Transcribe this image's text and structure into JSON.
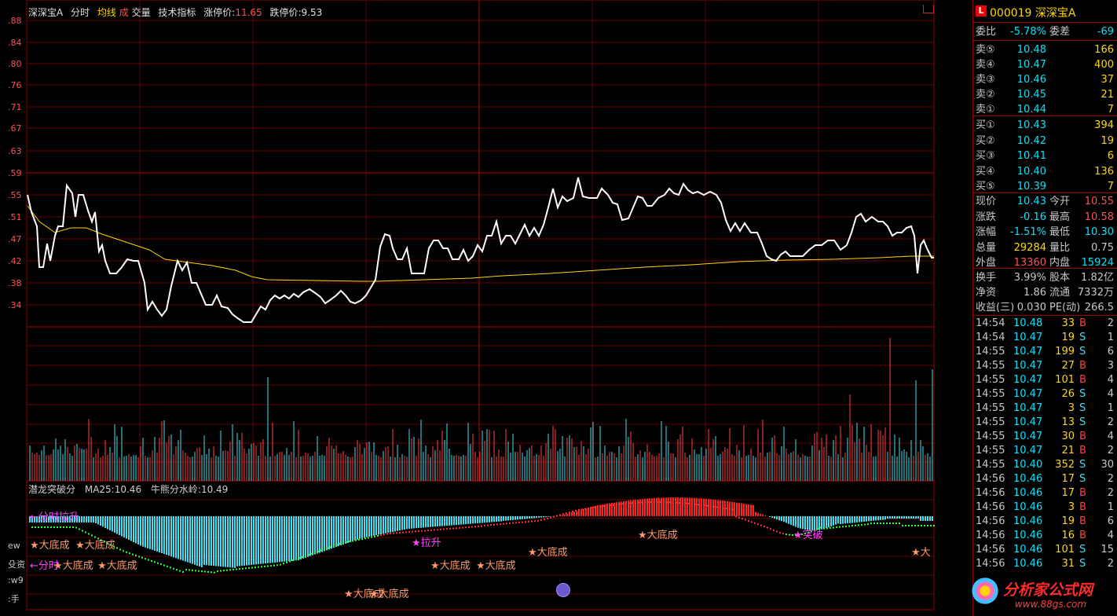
{
  "header": {
    "stock": "深深宝A",
    "tab_fenshi": "分时",
    "tab_junxian": "均线",
    "tab_cheng": "成",
    "tab_jiaoliang": "交量",
    "tab_jishu": "技术指标",
    "zhangting_label": "涨停价:",
    "zhangting_value": "11.65",
    "dieting_label": "跌停价:",
    "dieting_value": "9.53",
    "corner_icon": "expand-icon"
  },
  "y_axis": {
    "ticks": [
      ".88",
      ".84",
      ".80",
      ".76",
      ".71",
      ".67",
      ".63",
      ".59",
      ".55",
      ".51",
      ".47",
      ".42",
      ".38",
      ".34"
    ]
  },
  "indicator": {
    "name": "潜龙突破分",
    "ma": "MA25:10.46",
    "water": "牛熊分水岭:10.49",
    "left_labels": [
      "ew",
      "殳资",
      ":w9",
      ":手"
    ],
    "signals": [
      {
        "text": "←分时拉升",
        "color": "#ff40ff"
      },
      {
        "text": "★大底成",
        "color": "#ff9966"
      },
      {
        "text": "★大底成",
        "color": "#ff9966"
      },
      {
        "text": "←分时",
        "color": "#ff40ff"
      },
      {
        "text": "★大底成",
        "color": "#ff9966"
      },
      {
        "text": "★大底成",
        "color": "#ff9966"
      },
      {
        "text": "★拉升",
        "color": "#ff40ff"
      },
      {
        "text": "★大底成",
        "color": "#ff9966"
      },
      {
        "text": "★大底成",
        "color": "#ff9966"
      },
      {
        "text": "★大底成",
        "color": "#ff9966"
      },
      {
        "text": "★大底成",
        "color": "#ff9966"
      },
      {
        "text": "★突破",
        "color": "#ff40ff"
      },
      {
        "text": "★大",
        "color": "#ff9966"
      },
      {
        "text": "★大底成",
        "color": "#ff9966"
      },
      {
        "text": "★大底成",
        "color": "#ff9966"
      }
    ]
  },
  "panel": {
    "badge": "L",
    "code": "000019",
    "name": "深深宝A",
    "weibi_label": "委比",
    "weibi_value": "-5.78%",
    "weicha_label": "委差",
    "weicha_value": "-69",
    "sell": [
      {
        "label": "卖⑤",
        "price": "10.48",
        "vol": "166"
      },
      {
        "label": "卖④",
        "price": "10.47",
        "vol": "400"
      },
      {
        "label": "卖③",
        "price": "10.46",
        "vol": "37"
      },
      {
        "label": "卖②",
        "price": "10.45",
        "vol": "21"
      },
      {
        "label": "卖①",
        "price": "10.44",
        "vol": "7"
      }
    ],
    "buy": [
      {
        "label": "买①",
        "price": "10.43",
        "vol": "394"
      },
      {
        "label": "买②",
        "price": "10.42",
        "vol": "19"
      },
      {
        "label": "买③",
        "price": "10.41",
        "vol": "6"
      },
      {
        "label": "买④",
        "price": "10.40",
        "vol": "136"
      },
      {
        "label": "买⑤",
        "price": "10.39",
        "vol": "7"
      }
    ],
    "quotes": [
      {
        "l1": "现价",
        "v1": "10.43",
        "c1": "#00e5ff",
        "l2": "今开",
        "v2": "10.55",
        "c2": "#ff5050"
      },
      {
        "l1": "涨跌",
        "v1": "-0.16",
        "c1": "#00e5ff",
        "l2": "最高",
        "v2": "10.58",
        "c2": "#ff5050"
      },
      {
        "l1": "涨幅",
        "v1": "-1.51%",
        "c1": "#00e5ff",
        "l2": "最低",
        "v2": "10.30",
        "c2": "#00e5ff"
      },
      {
        "l1": "总量",
        "v1": "29284",
        "c1": "#ffd700",
        "l2": "量比",
        "v2": "0.75",
        "c2": "#c8c8c8"
      },
      {
        "l1": "外盘",
        "v1": "13360",
        "c1": "#ff5050",
        "l2": "内盘",
        "v2": "15924",
        "c2": "#00e5ff"
      }
    ],
    "finance": [
      {
        "l1": "换手",
        "v1": "3.99%",
        "l2": "股本",
        "v2": "1.82亿"
      },
      {
        "l1": "净资",
        "v1": "1.86",
        "l2": "流通",
        "v2": "7332万"
      },
      {
        "l1": "收益(三)",
        "v1": "0.030",
        "l2": "PE(动)",
        "v2": "266.5"
      }
    ],
    "ticks": [
      {
        "time": "14:54",
        "price": "10.48",
        "vol": "33",
        "bs": "B",
        "n": "2"
      },
      {
        "time": "14:54",
        "price": "10.47",
        "vol": "19",
        "bs": "S",
        "n": "1"
      },
      {
        "time": "14:55",
        "price": "10.47",
        "vol": "199",
        "bs": "S",
        "n": "6"
      },
      {
        "time": "14:55",
        "price": "10.47",
        "vol": "27",
        "bs": "B",
        "n": "3"
      },
      {
        "time": "14:55",
        "price": "10.47",
        "vol": "101",
        "bs": "B",
        "n": "4"
      },
      {
        "time": "14:55",
        "price": "10.47",
        "vol": "26",
        "bs": "S",
        "n": "4"
      },
      {
        "time": "14:55",
        "price": "10.47",
        "vol": "3",
        "bs": "S",
        "n": "1"
      },
      {
        "time": "14:55",
        "price": "10.47",
        "vol": "13",
        "bs": "S",
        "n": "2"
      },
      {
        "time": "14:55",
        "price": "10.47",
        "vol": "30",
        "bs": "B",
        "n": "4"
      },
      {
        "time": "14:55",
        "price": "10.47",
        "vol": "21",
        "bs": "B",
        "n": "2"
      },
      {
        "time": "14:55",
        "price": "10.40",
        "vol": "352",
        "bs": "S",
        "n": "30"
      },
      {
        "time": "14:56",
        "price": "10.46",
        "vol": "17",
        "bs": "S",
        "n": "2"
      },
      {
        "time": "14:56",
        "price": "10.46",
        "vol": "17",
        "bs": "B",
        "n": "2"
      },
      {
        "time": "14:56",
        "price": "10.46",
        "vol": "3",
        "bs": "B",
        "n": "1"
      },
      {
        "time": "14:56",
        "price": "10.46",
        "vol": "19",
        "bs": "B",
        "n": "6"
      },
      {
        "time": "14:56",
        "price": "10.46",
        "vol": "16",
        "bs": "B",
        "n": "4"
      },
      {
        "time": "14:56",
        "price": "10.46",
        "vol": "101",
        "bs": "S",
        "n": "15"
      },
      {
        "time": "14:56",
        "price": "10.46",
        "vol": "31",
        "bs": "S",
        "n": "2"
      }
    ]
  },
  "watermark": {
    "text": "分析家公式网",
    "url": "www.88gs.com"
  },
  "colors": {
    "grid": "#8b0000",
    "price_line": "#ffffff",
    "avg_line": "#ffd700",
    "up": "#ff4040",
    "down": "#40e0f0"
  }
}
